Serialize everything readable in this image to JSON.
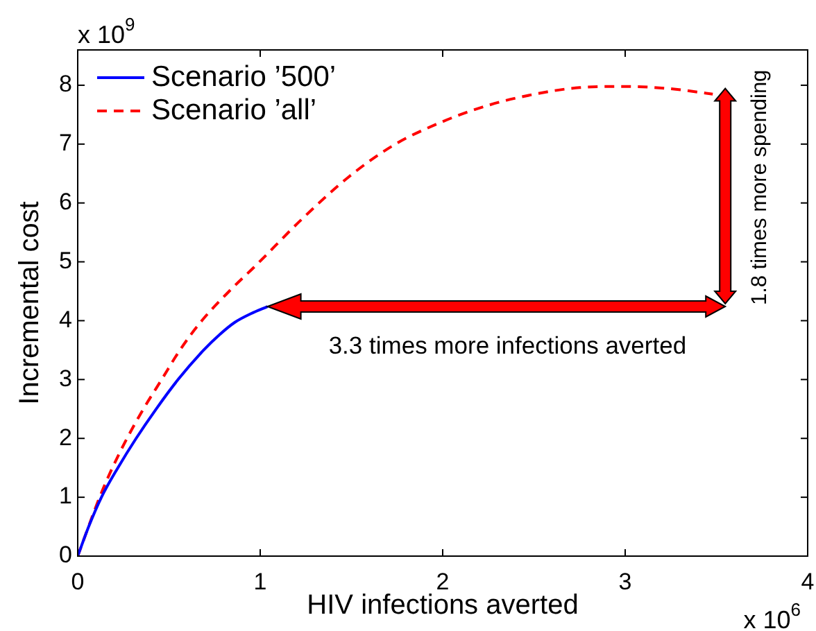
{
  "chart_data": {
    "type": "line",
    "xlabel": "HIV infections averted",
    "ylabel": "Incremental cost",
    "annotations": [
      "x 10$^{9}$",
      "x 10$^{6}$",
      "3.3 times more infections averted",
      "1.8 times more spending"
    ],
    "series": [
      {
        "name": "Scenario ’500’",
        "color": "#0000ff",
        "line_style": "solid",
        "x": [
          0,
          0.06,
          0.13,
          0.22,
          0.32,
          0.43,
          0.55,
          0.69,
          0.78,
          0.86,
          0.95,
          1.04
        ],
        "values": [
          0,
          0.5,
          1.0,
          1.5,
          2.0,
          2.5,
          3.0,
          3.5,
          3.77,
          3.97,
          4.12,
          4.24
        ]
      },
      {
        "name": "Scenario ’all’",
        "color": "#ff0000",
        "line_style": "dashed",
        "x": [
          0,
          0.12,
          0.19,
          0.27,
          0.36,
          0.46,
          0.56,
          0.68,
          0.83,
          0.98,
          1.22,
          1.48,
          1.73,
          1.99,
          2.24,
          2.49,
          2.75,
          3.0,
          3.25,
          3.48
        ],
        "values": [
          0,
          1.0,
          1.5,
          2.0,
          2.5,
          3.0,
          3.5,
          4.0,
          4.5,
          4.95,
          5.7,
          6.43,
          6.98,
          7.37,
          7.65,
          7.84,
          7.96,
          7.98,
          7.94,
          7.85
        ]
      }
    ],
    "xlim": [
      0,
      4
    ],
    "ylim": [
      0,
      8.6
    ],
    "xticks": [
      0,
      1,
      2,
      3,
      4
    ],
    "yticks": [
      0,
      1,
      2,
      3,
      4,
      5,
      6,
      7,
      8
    ],
    "grid": false,
    "legend": "top left"
  }
}
